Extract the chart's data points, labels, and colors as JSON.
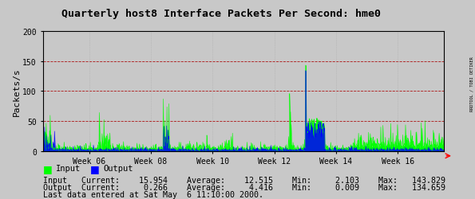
{
  "title": "Quarterly host8 Interface Packets Per Second: hme0",
  "ylabel": "Packets/s",
  "ylim": [
    0,
    200
  ],
  "yticks": [
    0,
    50,
    100,
    150,
    200
  ],
  "bg_color": "#c8c8c8",
  "plot_bg_color": "#c8c8c8",
  "grid_color_h": "#aa0000",
  "grid_color_v": "#aaaaaa",
  "input_color": "#00ff00",
  "output_color": "#0000ff",
  "week_labels": [
    "Week 06",
    "Week 08",
    "Week 10",
    "Week 12",
    "Week 14",
    "Week 16"
  ],
  "week_t_positions": [
    1.5,
    3.5,
    5.5,
    7.5,
    9.5,
    11.5
  ],
  "stats_line1": "Input   Current:    15.954    Average:    12.515    Min:     2.103    Max:   143.829",
  "stats_line2": "Output  Current:     0.266    Average:     4.416    Min:     0.009    Max:   134.659",
  "last_data_text": "Last data entered at Sat May  6 11:10:00 2000.",
  "legend_input": "Input",
  "legend_output": "Output",
  "right_label": "RRDTOOL / TOBI OETIKER"
}
